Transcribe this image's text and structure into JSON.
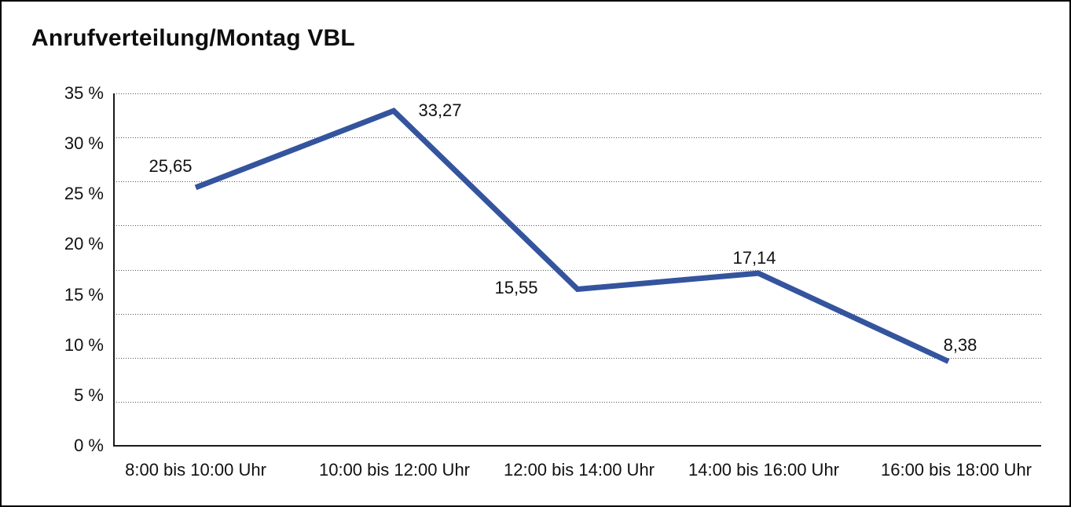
{
  "window": {
    "background_color": "#ffffff",
    "frame_border_color": "#000000"
  },
  "chart_data": {
    "type": "line",
    "title": "Anrufverteilung/Montag VBL",
    "categories": [
      "8:00 bis 10:00 Uhr",
      "10:00 bis 12:00 Uhr",
      "12:00 bis 14:00 Uhr",
      "14:00 bis 16:00 Uhr",
      "16:00 bis 18:00 Uhr"
    ],
    "series": [
      {
        "name": "Anrufverteilung Montag VBL",
        "values": [
          25.65,
          33.27,
          15.55,
          17.14,
          8.38
        ]
      }
    ],
    "data_labels": [
      "25,65",
      "33,27",
      "15,55",
      "17,14",
      "8,38"
    ],
    "y_ticks": [
      "0 %",
      "5 %",
      "10 %",
      "15 %",
      "20 %",
      "25 %",
      "30 %",
      "35 %"
    ],
    "ylim": [
      0,
      35
    ],
    "xlabel": "",
    "ylabel": "",
    "legend_position": "none",
    "grid": "horizontal-dotted",
    "line_color": "#34549E",
    "axis_color": "#1a1a1a",
    "grid_dot_color": "#555555",
    "text_color": "#111111"
  }
}
